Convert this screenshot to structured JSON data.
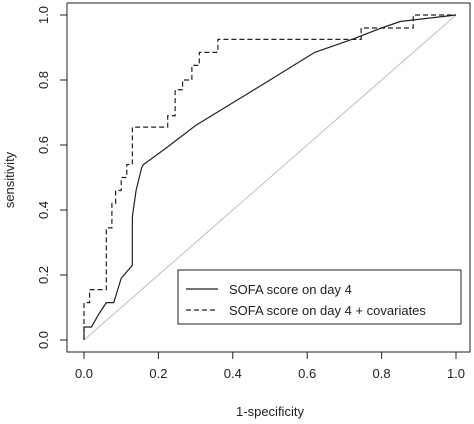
{
  "chart_data": {
    "type": "line",
    "title": "",
    "xlabel": "1-specificity",
    "ylabel": "sensitivity",
    "xlim": [
      0,
      1
    ],
    "ylim": [
      0,
      1
    ],
    "xticks": [
      "0.0",
      "0.2",
      "0.4",
      "0.6",
      "0.8",
      "1.0"
    ],
    "yticks": [
      "0.0",
      "0.2",
      "0.4",
      "0.6",
      "0.8",
      "1.0"
    ],
    "grid": false,
    "legend_position": "bottom-right",
    "reference_line": {
      "x": [
        0,
        1
      ],
      "y": [
        0,
        1
      ],
      "color": "#bfbfbf"
    },
    "series": [
      {
        "name": "SOFA score on day 4",
        "style": "solid",
        "color": "#222222",
        "x": [
          0,
          0,
          0.02,
          0.04,
          0.06,
          0.08,
          0.1,
          0.13,
          0.13,
          0.14,
          0.155,
          0.16,
          0.22,
          0.3,
          0.4,
          0.5,
          0.62,
          0.72,
          0.8,
          0.85,
          1
        ],
        "y": [
          0,
          0.04,
          0.04,
          0.08,
          0.115,
          0.115,
          0.19,
          0.23,
          0.38,
          0.46,
          0.53,
          0.54,
          0.59,
          0.66,
          0.73,
          0.8,
          0.885,
          0.925,
          0.96,
          0.98,
          1
        ]
      },
      {
        "name": "SOFA score on day 4 + covariates",
        "style": "dashed",
        "color": "#222222",
        "x": [
          0,
          0,
          0.015,
          0.015,
          0.06,
          0.06,
          0.075,
          0.075,
          0.085,
          0.085,
          0.1,
          0.1,
          0.115,
          0.115,
          0.13,
          0.13,
          0.225,
          0.225,
          0.245,
          0.245,
          0.265,
          0.265,
          0.29,
          0.29,
          0.31,
          0.31,
          0.36,
          0.36,
          0.745,
          0.745,
          0.885,
          0.885,
          1
        ],
        "y": [
          0,
          0.115,
          0.115,
          0.155,
          0.155,
          0.345,
          0.345,
          0.42,
          0.42,
          0.46,
          0.46,
          0.5,
          0.5,
          0.54,
          0.54,
          0.655,
          0.655,
          0.69,
          0.69,
          0.77,
          0.77,
          0.8,
          0.8,
          0.845,
          0.845,
          0.885,
          0.885,
          0.925,
          0.925,
          0.96,
          0.96,
          1,
          1
        ]
      }
    ]
  }
}
